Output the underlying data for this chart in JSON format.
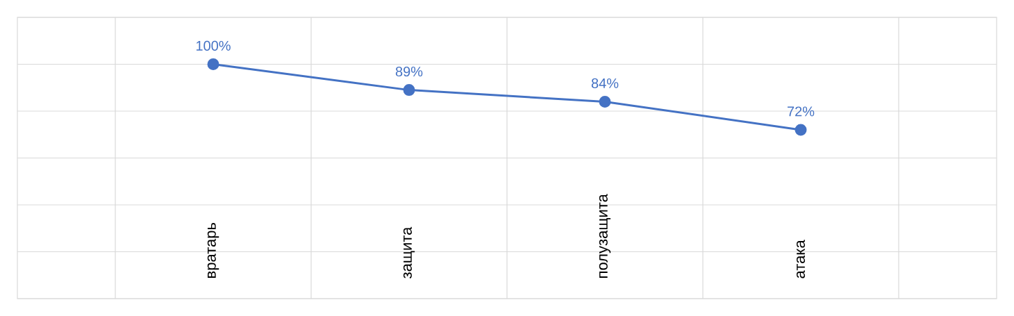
{
  "chart_data": {
    "type": "line",
    "categories": [
      "вратарь",
      "защита",
      "полузащита",
      "атака"
    ],
    "values": [
      100,
      89,
      84,
      72
    ],
    "value_labels": [
      "100%",
      "89%",
      "84%",
      "72%"
    ],
    "color": "#4472c4",
    "marker": "circle",
    "line_style": "solid",
    "ylim": [
      0,
      120
    ],
    "yticks": [
      {
        "value": 0,
        "label": null
      },
      {
        "value": 20,
        "label": null
      },
      {
        "value": 40,
        "label": null
      },
      {
        "value": 60,
        "label": null
      },
      {
        "value": 80,
        "label": null
      },
      {
        "value": 100,
        "label": null
      },
      {
        "value": 120,
        "label": null
      }
    ],
    "grid": true
  }
}
